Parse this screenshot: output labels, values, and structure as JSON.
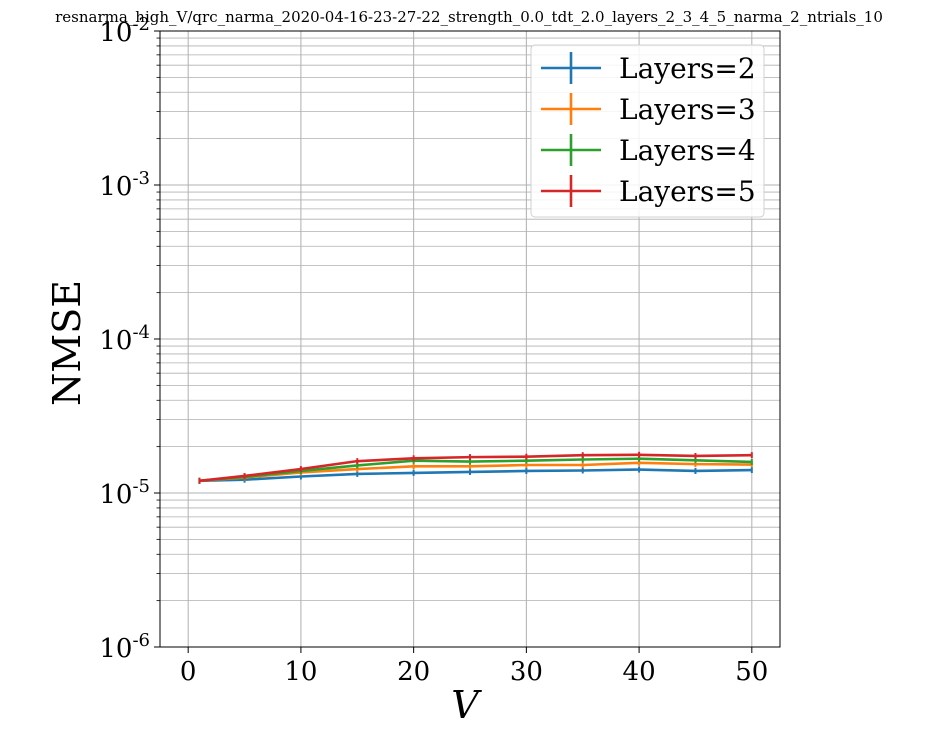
{
  "chart_data": {
    "type": "line",
    "title": "resnarma_high_V/qrc_narma_2020-04-16-23-27-22_strength_0.0_tdt_2.0_layers_2_3_4_5_narma_2_ntrials_10",
    "xlabel": "V",
    "ylabel": "NMSE",
    "x": [
      1,
      5,
      10,
      15,
      20,
      25,
      30,
      35,
      40,
      45,
      50
    ],
    "xlim": [
      -2.5,
      52.5
    ],
    "ylim": [
      1e-06,
      0.01
    ],
    "yscale": "log",
    "xticks": [
      0,
      10,
      20,
      30,
      40,
      50
    ],
    "xtick_labels": [
      "0",
      "10",
      "20",
      "30",
      "40",
      "50"
    ],
    "yticks": [
      1e-06,
      1e-05,
      0.0001,
      0.001,
      0.01
    ],
    "ytick_labels": [
      {
        "base": "10",
        "exp": "-6"
      },
      {
        "base": "10",
        "exp": "-5"
      },
      {
        "base": "10",
        "exp": "-4"
      },
      {
        "base": "10",
        "exp": "-3"
      },
      {
        "base": "10",
        "exp": "-2"
      }
    ],
    "grid": true,
    "legend_position": "top-right",
    "series": [
      {
        "name": "Layers=2",
        "color": "#1f77b4",
        "values": [
          1.2e-05,
          1.22e-05,
          1.28e-05,
          1.33e-05,
          1.35e-05,
          1.37e-05,
          1.39e-05,
          1.4e-05,
          1.42e-05,
          1.39e-05,
          1.41e-05
        ]
      },
      {
        "name": "Layers=3",
        "color": "#ff7f0e",
        "values": [
          1.2e-05,
          1.26e-05,
          1.36e-05,
          1.43e-05,
          1.49e-05,
          1.49e-05,
          1.52e-05,
          1.52e-05,
          1.57e-05,
          1.54e-05,
          1.53e-05
        ]
      },
      {
        "name": "Layers=4",
        "color": "#2ca02c",
        "values": [
          1.2e-05,
          1.27e-05,
          1.39e-05,
          1.51e-05,
          1.62e-05,
          1.6e-05,
          1.62e-05,
          1.65e-05,
          1.67e-05,
          1.63e-05,
          1.59e-05
        ]
      },
      {
        "name": "Layers=5",
        "color": "#d62728",
        "values": [
          1.2e-05,
          1.29e-05,
          1.43e-05,
          1.61e-05,
          1.68e-05,
          1.71e-05,
          1.72e-05,
          1.76e-05,
          1.77e-05,
          1.74e-05,
          1.76e-05
        ]
      }
    ]
  }
}
